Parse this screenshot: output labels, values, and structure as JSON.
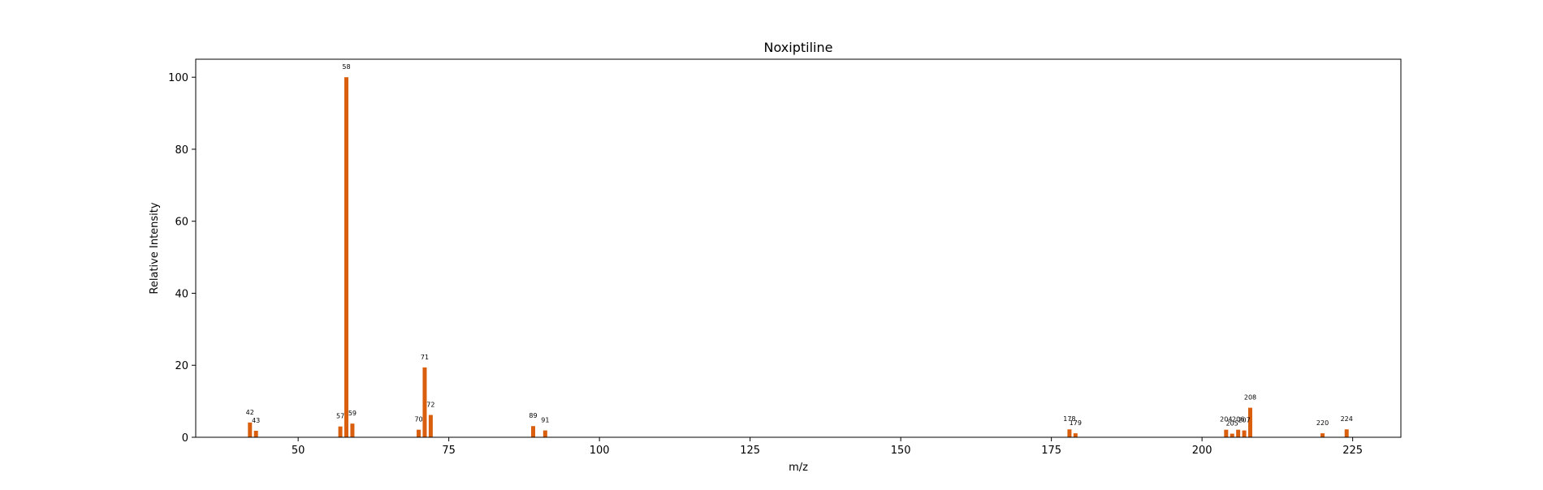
{
  "chart_data": {
    "type": "bar",
    "title": "Noxiptiline",
    "xlabel": "m/z",
    "ylabel": "Relative Intensity",
    "xlim": [
      33,
      233
    ],
    "ylim": [
      0,
      105
    ],
    "xticks": [
      50,
      75,
      100,
      125,
      150,
      175,
      200,
      225
    ],
    "yticks": [
      0,
      20,
      40,
      60,
      80,
      100
    ],
    "grid": false,
    "bar_color": "#d95f0e",
    "peaks": [
      {
        "mz": 42,
        "intensity": 4.1,
        "label": "42"
      },
      {
        "mz": 43,
        "intensity": 1.8,
        "label": "43"
      },
      {
        "mz": 57,
        "intensity": 3.0,
        "label": "57"
      },
      {
        "mz": 58,
        "intensity": 100.0,
        "label": "58"
      },
      {
        "mz": 59,
        "intensity": 3.8,
        "label": "59"
      },
      {
        "mz": 70,
        "intensity": 2.1,
        "label": "70"
      },
      {
        "mz": 71,
        "intensity": 19.4,
        "label": "71"
      },
      {
        "mz": 72,
        "intensity": 6.2,
        "label": "72"
      },
      {
        "mz": 89,
        "intensity": 3.1,
        "label": "89"
      },
      {
        "mz": 91,
        "intensity": 1.9,
        "label": "91"
      },
      {
        "mz": 178,
        "intensity": 2.2,
        "label": "178"
      },
      {
        "mz": 179,
        "intensity": 1.1,
        "label": "179"
      },
      {
        "mz": 204,
        "intensity": 2.1,
        "label": "204"
      },
      {
        "mz": 205,
        "intensity": 1.0,
        "label": "205"
      },
      {
        "mz": 206,
        "intensity": 2.1,
        "label": "206"
      },
      {
        "mz": 207,
        "intensity": 1.9,
        "label": "207"
      },
      {
        "mz": 208,
        "intensity": 8.2,
        "label": "208"
      },
      {
        "mz": 220,
        "intensity": 1.1,
        "label": "220"
      },
      {
        "mz": 224,
        "intensity": 2.2,
        "label": "224"
      }
    ]
  }
}
